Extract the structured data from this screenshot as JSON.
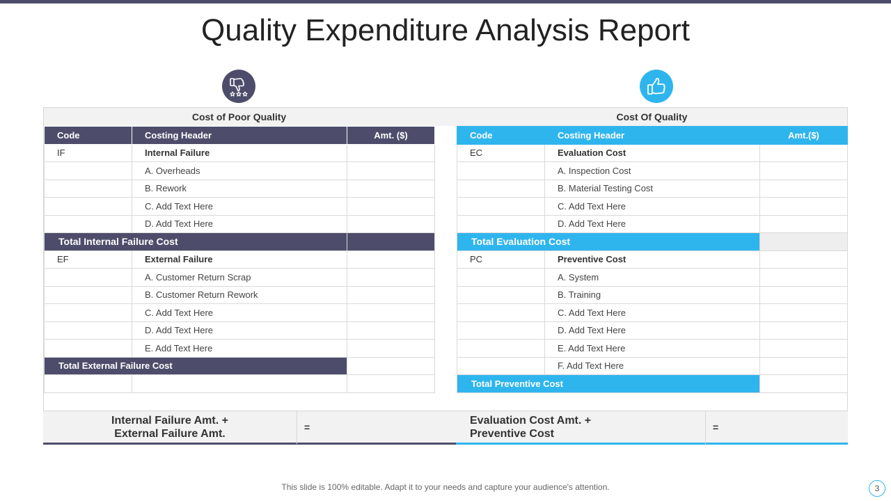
{
  "title": "Quality Expenditure Analysis Report",
  "icons": {
    "left": "thumbs-down-stars-icon",
    "right": "thumbs-up-icon"
  },
  "colors": {
    "dark": "#4d4d6b",
    "accent": "#2fb5ee"
  },
  "poor_quality": {
    "title": "Cost of Poor Quality",
    "headers": {
      "code": "Code",
      "header": "Costing  Header",
      "amount": "Amt. ($)"
    },
    "groups": [
      {
        "code": "IF",
        "name": "Internal Failure",
        "items": [
          "A. Overheads",
          "B. Rework",
          "C. Add Text Here",
          "D. Add Text Here"
        ],
        "total": "Total Internal Failure Cost"
      },
      {
        "code": "EF",
        "name": "External Failure",
        "items": [
          "A. Customer Return  Scrap",
          "B. Customer Return  Rework",
          "C. Add Text Here",
          "D. Add Text Here",
          "E. Add Text Here"
        ],
        "total": "Total External Failure Cost"
      }
    ]
  },
  "quality": {
    "title": "Cost Of Quality",
    "headers": {
      "code": "Code",
      "header": "Costing  Header",
      "amount": "Amt.($)"
    },
    "groups": [
      {
        "code": "EC",
        "name": "Evaluation Cost",
        "items": [
          "A. Inspection Cost",
          "B. Material Testing Cost",
          "C. Add Text Here",
          "D. Add Text Here"
        ],
        "total": "Total Evaluation Cost"
      },
      {
        "code": "PC",
        "name": "Preventive Cost",
        "items": [
          "A. System",
          "B. Training",
          "C. Add Text Here",
          "D. Add Text Here",
          "E. Add Text Here",
          "F. Add Text Here"
        ],
        "total": "Total Preventive Cost"
      }
    ]
  },
  "summary": {
    "left_line1": "Internal Failure Amt. +",
    "left_line2": "External Failure Amt.",
    "right_line1": "Evaluation Cost Amt. +",
    "right_line2": "Preventive Cost",
    "equals": "="
  },
  "footer": "This slide is 100% editable. Adapt it to your needs and capture your audience's attention.",
  "page_number": "3"
}
